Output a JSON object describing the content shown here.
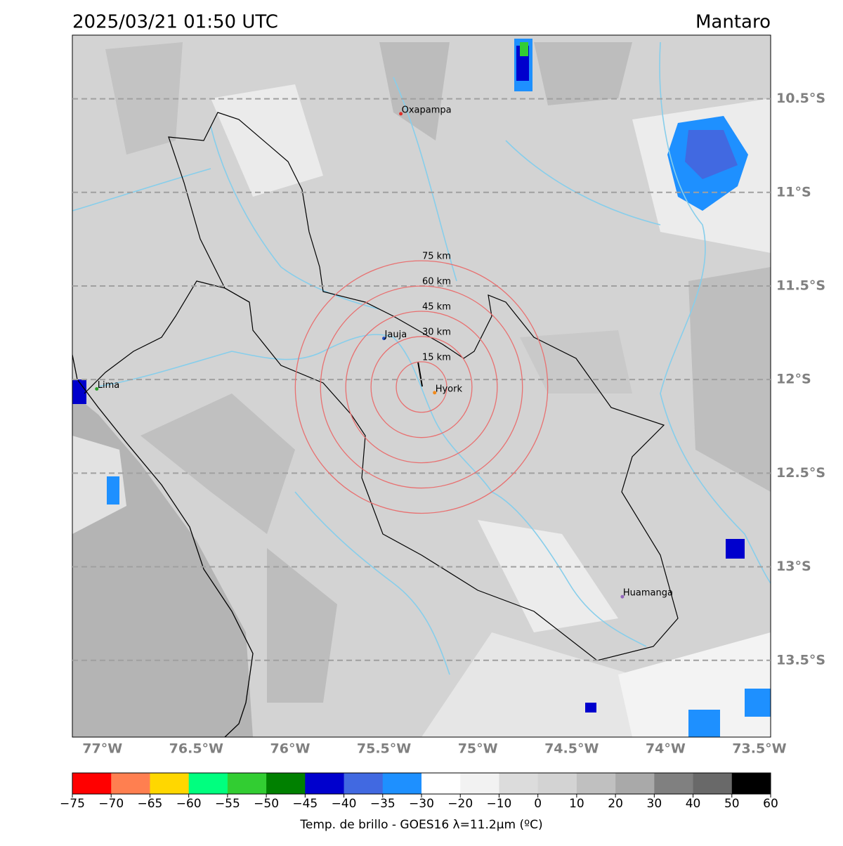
{
  "map": {
    "title": "2025/03/21 01:50 UTC",
    "region": "Mantaro",
    "xlim": [
      -77.16,
      -73.44
    ],
    "ylim": [
      -13.91,
      -10.16
    ],
    "xticks": [
      {
        "value": -77,
        "label": "77°W"
      },
      {
        "value": -76.5,
        "label": "76.5°W"
      },
      {
        "value": -76,
        "label": "76°W"
      },
      {
        "value": -75.5,
        "label": "75.5°W"
      },
      {
        "value": -75,
        "label": "75°W"
      },
      {
        "value": -74.5,
        "label": "74.5°W"
      },
      {
        "value": -74,
        "label": "74°W"
      },
      {
        "value": -73.5,
        "label": "73.5°W"
      }
    ],
    "yticks": [
      {
        "value": -10.5,
        "label": "10.5°S"
      },
      {
        "value": -11,
        "label": "11°S"
      },
      {
        "value": -11.5,
        "label": "11.5°S"
      },
      {
        "value": -12,
        "label": "12°S"
      },
      {
        "value": -12.5,
        "label": "12.5°S"
      },
      {
        "value": -13,
        "label": "13°S"
      },
      {
        "value": -13.5,
        "label": "13.5°S"
      }
    ],
    "grid": "y",
    "cities": [
      {
        "name": "Oxapampa",
        "lon": -75.41,
        "lat": -10.58,
        "color": "#e0302a"
      },
      {
        "name": "Jauja",
        "lon": -75.5,
        "lat": -11.78,
        "color": "#1f4fbf"
      },
      {
        "name": "Hyork",
        "lon": -75.23,
        "lat": -12.07,
        "color": "#f08a1c"
      },
      {
        "name": "Lima",
        "lon": -77.03,
        "lat": -12.05,
        "color": "#2ca02c"
      },
      {
        "name": "Huamanga",
        "lon": -74.23,
        "lat": -13.16,
        "color": "#9467bd"
      }
    ],
    "rings": {
      "center_lon": -75.3,
      "center_lat": -12.04,
      "color": "#e87070",
      "radii": [
        {
          "value": 15,
          "label": "15 km"
        },
        {
          "value": 30,
          "label": "30 km"
        },
        {
          "value": 45,
          "label": "45 km"
        },
        {
          "value": 60,
          "label": "60 km"
        },
        {
          "value": 75,
          "label": "75 km"
        }
      ]
    },
    "colorbar": {
      "label": "Temp. de brillo - GOES16 λ=11.2μm (ºC)",
      "ticks": [
        {
          "value": -75,
          "label": "−75"
        },
        {
          "value": -70,
          "label": "−70"
        },
        {
          "value": -65,
          "label": "−65"
        },
        {
          "value": -60,
          "label": "−60"
        },
        {
          "value": -55,
          "label": "−55"
        },
        {
          "value": -50,
          "label": "−50"
        },
        {
          "value": -45,
          "label": "−45"
        },
        {
          "value": -40,
          "label": "−40"
        },
        {
          "value": -35,
          "label": "−35"
        },
        {
          "value": -30,
          "label": "−30"
        },
        {
          "value": -20,
          "label": "−20"
        },
        {
          "value": -10,
          "label": "−10"
        },
        0,
        10,
        20,
        30,
        40,
        50,
        60
      ],
      "colors": [
        "#ff0000",
        "#ff7f50",
        "#ffd700",
        "#00ff7f",
        "#32cd32",
        "#008000",
        "#0000cd",
        "#4169e1",
        "#1e90ff",
        "#ffffff",
        "#f2f2f2",
        "#dcdcdc",
        "#d3d3d3",
        "#c0c0c0",
        "#a9a9a9",
        "#808080",
        "#696969",
        "#000000"
      ]
    }
  }
}
